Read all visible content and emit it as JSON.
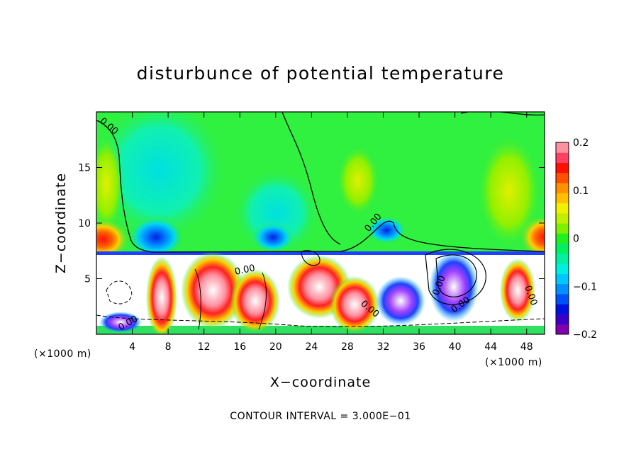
{
  "chart_data": {
    "type": "heatmap",
    "title": "disturbunce of potential temperature",
    "xlabel": "X−coordinate",
    "ylabel": "Z−coordinate",
    "x_unit_label": "(×1000 m)",
    "y_unit_label": "(×1000 m)",
    "x_ticks": [
      4,
      8,
      12,
      16,
      20,
      24,
      28,
      32,
      36,
      40,
      44,
      48
    ],
    "y_ticks": [
      5,
      10,
      15
    ],
    "xlim": [
      0,
      50
    ],
    "ylim": [
      0,
      20
    ],
    "colorbar": {
      "ticks": [
        "0.2",
        "0.1",
        "0",
        "−0.1",
        "−0.2"
      ],
      "vmin": -0.2,
      "vmax": 0.2,
      "colors": [
        "#7f00b0",
        "#3b00c8",
        "#0010e0",
        "#0050ff",
        "#0090ff",
        "#00c8ff",
        "#00f0e0",
        "#00f0a0",
        "#00f060",
        "#20f020",
        "#80f000",
        "#c0f000",
        "#f0f000",
        "#ffc000",
        "#ff9000",
        "#ff5000",
        "#ff1000",
        "#ff4060",
        "#ff90a0"
      ]
    },
    "contour_interval_text": "CONTOUR INTERVAL = 3.000E−01",
    "contour_labels": [
      "0.00",
      "0.00",
      "0.00",
      "0.00",
      "0.00",
      "0.00",
      "0.00",
      "0.00"
    ],
    "field_description_regions": {
      "upper_layer_z_range": [
        7.3,
        20
      ],
      "lower_layer_z_range": [
        0,
        7.3
      ]
    }
  }
}
